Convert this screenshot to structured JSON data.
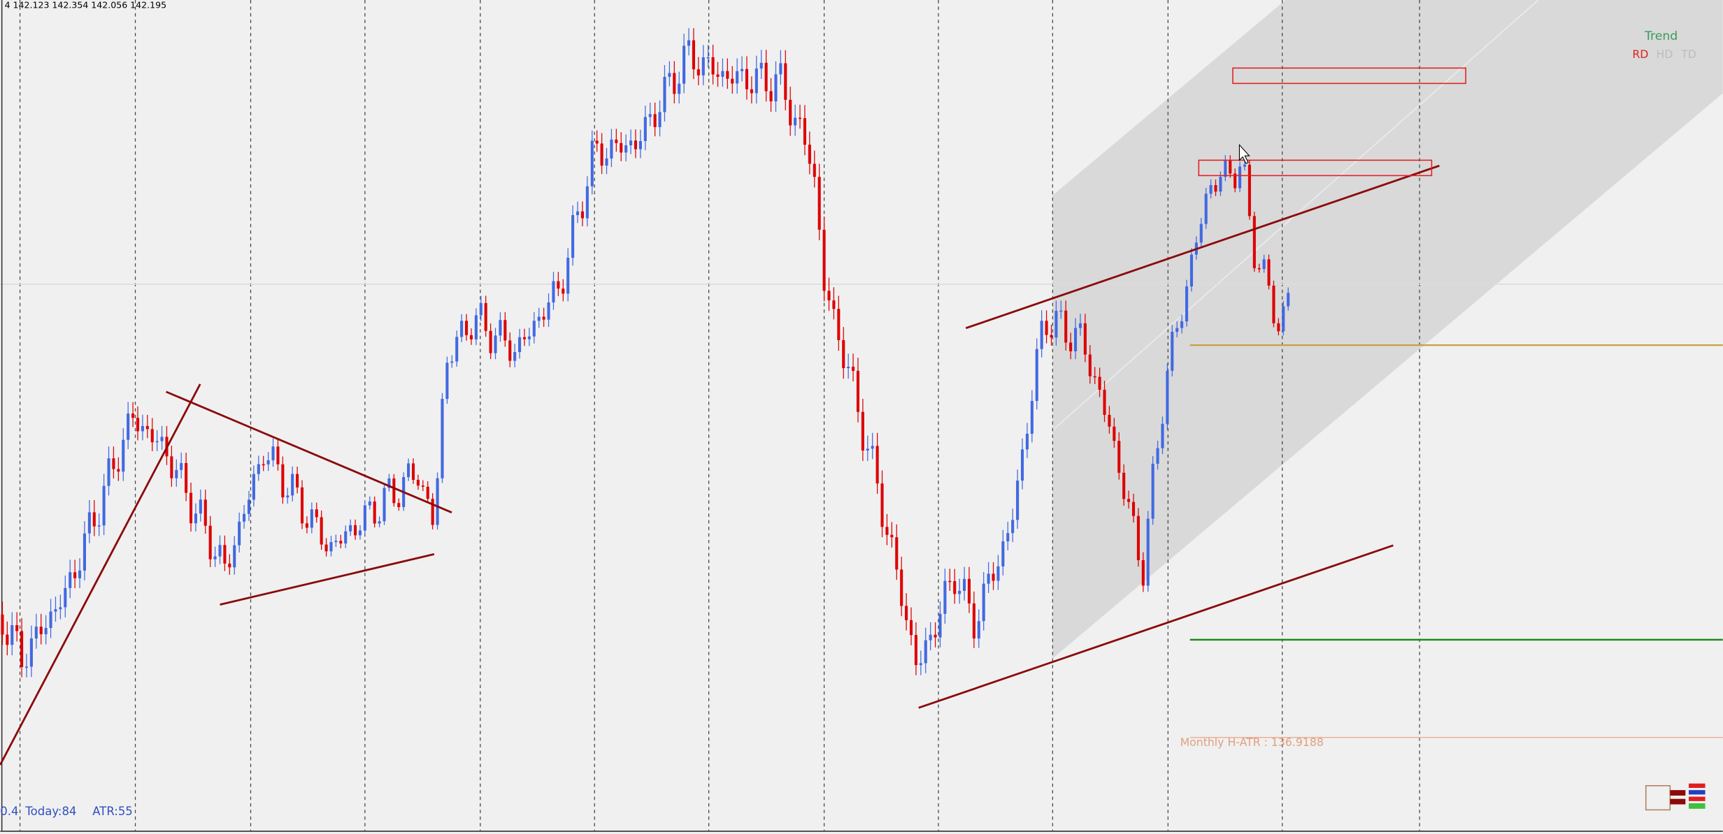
{
  "header": {
    "ohlc": "4  142.123 142.354 142.056 142.195"
  },
  "legend": {
    "title": "Trend",
    "items": [
      "RD",
      "HD",
      "TD"
    ]
  },
  "annotations": {
    "monthly_atr": "Monthly H-ATR : 136.9188"
  },
  "footer": {
    "prefix": "0.4",
    "today": "Today:84",
    "atr": "ATR:55"
  }
}
